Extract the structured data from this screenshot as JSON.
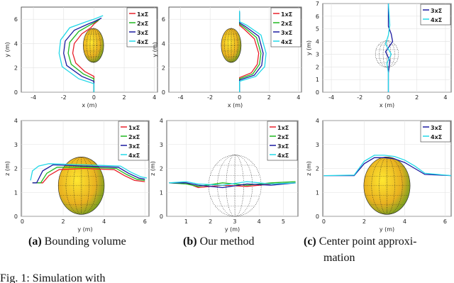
{
  "chart_data": [
    {
      "type": "line",
      "xlabel": "x (m)",
      "ylabel": "y (m)",
      "xlim": [
        -4.8,
        4.2
      ],
      "ylim": [
        0,
        7
      ],
      "xticks": [
        -4,
        -2,
        0,
        2,
        4
      ],
      "yticks": [
        0,
        2,
        4,
        6
      ],
      "series": [
        {
          "name": "1xΣ",
          "color": "#e8202a",
          "x": [
            0,
            0,
            -0.6,
            -1.2,
            -1.4,
            -1.3,
            -0.8,
            -0.2,
            0,
            0.3
          ],
          "values": [
            0,
            1.3,
            1.7,
            2.4,
            3.2,
            4.0,
            4.8,
            5.3,
            5.6,
            5.9
          ]
        },
        {
          "name": "2xΣ",
          "color": "#1fb81f",
          "x": [
            0,
            0,
            -0.7,
            -1.5,
            -1.7,
            -1.6,
            -1.0,
            -0.3,
            0,
            0.4
          ],
          "values": [
            0,
            1.1,
            1.5,
            2.3,
            3.2,
            4.1,
            5.0,
            5.5,
            5.7,
            6.0
          ]
        },
        {
          "name": "3xΣ",
          "color": "#1a1aa0",
          "x": [
            0,
            0,
            -0.8,
            -1.8,
            -2.0,
            -1.9,
            -1.3,
            -0.4,
            0,
            0.5
          ],
          "values": [
            0,
            0.9,
            1.3,
            2.2,
            3.2,
            4.2,
            5.1,
            5.6,
            5.8,
            6.1
          ]
        },
        {
          "name": "4xΣ",
          "color": "#22d8e8",
          "x": [
            0,
            0,
            -1.0,
            -2.1,
            -2.3,
            -2.2,
            -1.6,
            -0.5,
            0,
            0.6
          ],
          "values": [
            0,
            0.7,
            1.1,
            2.1,
            3.2,
            4.3,
            5.3,
            5.8,
            6.0,
            6.3
          ]
        }
      ]
    },
    {
      "type": "line",
      "xlabel": "x (m)",
      "ylabel": "y (m)",
      "xlim": [
        -4.8,
        4.2
      ],
      "ylim": [
        0,
        7
      ],
      "xticks": [
        -4,
        -2,
        0,
        2,
        4
      ],
      "yticks": [
        0,
        2,
        4,
        6
      ],
      "series": [
        {
          "name": "1xΣ",
          "color": "#e8202a",
          "x": [
            0,
            0,
            0.8,
            1.2,
            1.3,
            1.0,
            0.3,
            0,
            0
          ],
          "values": [
            0,
            1.2,
            1.6,
            2.3,
            3.2,
            4.4,
            5.2,
            5.5,
            6.5
          ]
        },
        {
          "name": "2xΣ",
          "color": "#1fb81f",
          "x": [
            0,
            0,
            0.9,
            1.35,
            1.45,
            1.15,
            0.35,
            0,
            0
          ],
          "values": [
            0,
            1.1,
            1.5,
            2.3,
            3.2,
            4.5,
            5.3,
            5.6,
            6.5
          ]
        },
        {
          "name": "3xΣ",
          "color": "#1a1aa0",
          "x": [
            0,
            0,
            1.0,
            1.5,
            1.6,
            1.3,
            0.4,
            0,
            0
          ],
          "values": [
            0,
            1.0,
            1.4,
            2.2,
            3.2,
            4.6,
            5.4,
            5.7,
            6.6
          ]
        },
        {
          "name": "4xΣ",
          "color": "#22d8e8",
          "x": [
            0,
            0,
            1.1,
            1.7,
            1.8,
            1.45,
            0.5,
            0,
            0
          ],
          "values": [
            0,
            0.9,
            1.3,
            2.1,
            3.2,
            4.7,
            5.5,
            5.8,
            6.7
          ]
        }
      ]
    },
    {
      "type": "line",
      "xlabel": "x (m)",
      "ylabel": "y (m)",
      "xlim": [
        -4.6,
        4.4
      ],
      "ylim": [
        0,
        7
      ],
      "xticks": [
        -4,
        -2,
        0,
        2,
        4
      ],
      "yticks": [
        0,
        1,
        2,
        3,
        4,
        5,
        6,
        7
      ],
      "series": [
        {
          "name": "3xΣ",
          "color": "#1a1aa0",
          "x": [
            0,
            0,
            0.1,
            -0.2,
            0.3,
            0.2,
            0,
            0
          ],
          "values": [
            0,
            1.5,
            2.5,
            3.2,
            4.0,
            4.6,
            5.2,
            7
          ]
        },
        {
          "name": "4xΣ",
          "color": "#22d8e8",
          "x": [
            0,
            0,
            -0.1,
            0.2,
            -0.2,
            0,
            0.1,
            0
          ],
          "values": [
            0,
            1.5,
            2.3,
            3.0,
            3.8,
            4.5,
            5.3,
            7
          ]
        }
      ]
    },
    {
      "type": "line",
      "xlabel": "y (m)",
      "ylabel": "z (m)",
      "xlim": [
        -0.05,
        6.2
      ],
      "ylim": [
        0,
        4
      ],
      "xticks": [
        0,
        2,
        4,
        6
      ],
      "yticks": [
        0,
        1,
        2,
        3,
        4
      ],
      "series": [
        {
          "name": "1xΣ",
          "color": "#e8202a",
          "x": [
            0.5,
            1.0,
            1.3,
            1.8,
            3.0,
            4.5,
            5.0,
            5.5,
            6.0
          ],
          "values": [
            1.4,
            1.4,
            1.7,
            1.95,
            2.0,
            1.95,
            1.7,
            1.5,
            1.45
          ]
        },
        {
          "name": "2xΣ",
          "color": "#1fb81f",
          "x": [
            0.5,
            0.9,
            1.2,
            1.7,
            3.0,
            4.6,
            5.1,
            5.6,
            6.0
          ],
          "values": [
            1.4,
            1.4,
            1.8,
            2.05,
            2.05,
            2.0,
            1.75,
            1.55,
            1.5
          ]
        },
        {
          "name": "3xΣ",
          "color": "#1a1aa0",
          "x": [
            0.5,
            0.7,
            1.0,
            1.5,
            3.0,
            4.7,
            5.2,
            5.7,
            6.0
          ],
          "values": [
            1.4,
            1.4,
            1.9,
            2.15,
            2.1,
            2.05,
            1.8,
            1.6,
            1.55
          ]
        },
        {
          "name": "4xΣ",
          "color": "#22d8e8",
          "x": [
            0.4,
            0.5,
            0.8,
            1.3,
            3.0,
            4.8,
            5.3,
            5.8,
            6.1
          ],
          "values": [
            1.5,
            1.9,
            2.1,
            2.2,
            2.15,
            2.1,
            1.85,
            1.65,
            1.6
          ]
        }
      ]
    },
    {
      "type": "line",
      "xlabel": "y (m)",
      "ylabel": "z (m)",
      "xlim": [
        0.2,
        5.6
      ],
      "ylim": [
        0,
        4
      ],
      "xticks": [
        1,
        2,
        3,
        4,
        5
      ],
      "yticks": [
        0,
        1,
        2,
        3,
        4
      ],
      "series": [
        {
          "name": "1xΣ",
          "color": "#e8202a",
          "x": [
            0.3,
            1.0,
            1.5,
            2.5,
            3.5,
            4.5,
            5.5
          ],
          "values": [
            1.4,
            1.4,
            1.2,
            1.3,
            1.25,
            1.35,
            1.4
          ]
        },
        {
          "name": "2xΣ",
          "color": "#1fb81f",
          "x": [
            0.3,
            1.0,
            1.5,
            2.5,
            3.5,
            4.5,
            5.5
          ],
          "values": [
            1.4,
            1.35,
            1.25,
            1.4,
            1.3,
            1.4,
            1.45
          ]
        },
        {
          "name": "3xΣ",
          "color": "#1a1aa0",
          "x": [
            0.3,
            1.0,
            1.5,
            2.5,
            3.5,
            4.5,
            5.5
          ],
          "values": [
            1.4,
            1.4,
            1.3,
            1.2,
            1.35,
            1.3,
            1.4
          ]
        },
        {
          "name": "4xΣ",
          "color": "#22d8e8",
          "x": [
            0.3,
            1.0,
            1.5,
            2.5,
            3.5,
            4.5,
            5.5
          ],
          "values": [
            1.4,
            1.45,
            1.35,
            1.3,
            1.45,
            1.35,
            1.4
          ]
        }
      ]
    },
    {
      "type": "line",
      "xlabel": "y (m)",
      "ylabel": "z (m)",
      "xlim": [
        -0.05,
        6.3
      ],
      "ylim": [
        0,
        4
      ],
      "xticks": [
        0,
        2,
        4,
        6
      ],
      "yticks": [
        0,
        1,
        2,
        3,
        4
      ],
      "series": [
        {
          "name": "3xΣ",
          "color": "#1a1aa0",
          "x": [
            0,
            1.5,
            2.0,
            2.5,
            3.0,
            3.5,
            4.0,
            4.5,
            5.0,
            6.3
          ],
          "values": [
            1.7,
            1.7,
            2.2,
            2.45,
            2.45,
            2.4,
            2.25,
            2.0,
            1.75,
            1.7
          ]
        },
        {
          "name": "4xΣ",
          "color": "#22d8e8",
          "x": [
            0,
            1.5,
            2.0,
            2.5,
            3.0,
            3.5,
            4.0,
            4.5,
            5.0,
            6.3
          ],
          "values": [
            1.7,
            1.72,
            2.3,
            2.55,
            2.55,
            2.5,
            2.35,
            2.1,
            1.8,
            1.7
          ]
        }
      ]
    }
  ],
  "captions": [
    {
      "label": "(a)",
      "text": "Bounding volume"
    },
    {
      "label": "(b)",
      "text": "Our method"
    },
    {
      "label": "(c)",
      "text": "Center point approxi-",
      "text2": "mation"
    }
  ],
  "figure_caption": "Fig. 1: Simulation with"
}
